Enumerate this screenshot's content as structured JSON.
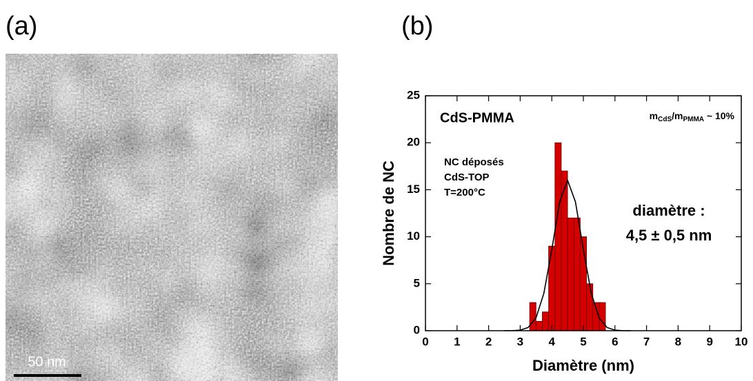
{
  "panel_a": {
    "label": "(a)",
    "scale_bar": "50 nm"
  },
  "chart_data": {
    "type": "histogram",
    "panel_label": "(b)",
    "x_label": "Diamètre (nm)",
    "y_label": "Nombre de NC",
    "sample": "CdS-PMMA",
    "ratio": {
      "m1": "m",
      "sub1": "CdS",
      "m2": "/m",
      "sub2": "PMMA",
      "tail": " ~ 10%"
    },
    "conditions": [
      "NC déposés",
      "CdS-TOP",
      "T=200°C"
    ],
    "result": [
      "diamètre :",
      "4,5 ± 0,5 nm"
    ],
    "bins": [
      3.3,
      3.5,
      3.7,
      3.9,
      4.1,
      4.3,
      4.5,
      4.7,
      4.9,
      5.1,
      5.3,
      5.5,
      5.7
    ],
    "values": [
      3,
      1,
      2,
      9,
      20,
      17,
      12,
      12,
      10,
      5,
      3,
      3
    ],
    "color": "#d40000",
    "fit": {
      "x": [
        2.5,
        2.75,
        3,
        3.25,
        3.5,
        3.75,
        4,
        4.25,
        4.5,
        4.75,
        5,
        5.25,
        5.5,
        5.75,
        6,
        6.25,
        6.5
      ],
      "values": [
        0,
        0.01,
        0.06,
        0.34,
        1.36,
        3.99,
        8.62,
        13.7,
        16,
        13.7,
        8.62,
        3.99,
        1.36,
        0.34,
        0.06,
        0.01,
        0
      ]
    },
    "xlim": [
      0,
      10
    ],
    "xticks": [
      0,
      1,
      2,
      3,
      4,
      5,
      6,
      7,
      8,
      9,
      10
    ],
    "ylim": [
      0,
      25
    ],
    "yticks": [
      0,
      5,
      10,
      15,
      20,
      25
    ]
  }
}
